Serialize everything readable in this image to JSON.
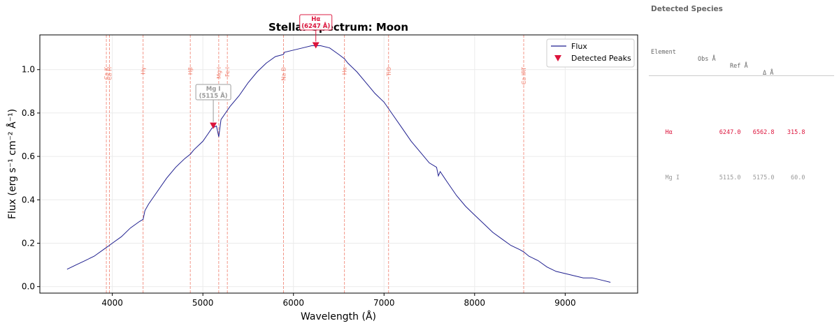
{
  "chart_data": {
    "type": "line",
    "title": "Stellar Spectrum: Moon",
    "xlabel": "Wavelength (Å)",
    "ylabel": "Flux (erg s⁻¹ cm⁻² Å⁻¹)",
    "xlim": [
      3200,
      9800
    ],
    "ylim": [
      -0.03,
      1.16
    ],
    "xticks": [
      4000,
      5000,
      6000,
      7000,
      8000,
      9000
    ],
    "yticks": [
      0.0,
      0.2,
      0.4,
      0.6,
      0.8,
      1.0
    ],
    "ytick_labels": [
      "0.0",
      "0.2",
      "0.4",
      "0.6",
      "0.8",
      "1.0"
    ],
    "grid": true,
    "legend_position": "top-right",
    "series": [
      {
        "name": "Flux",
        "color": "#1f1f8f",
        "x": [
          3500,
          3600,
          3700,
          3800,
          3900,
          3934,
          3968,
          4000,
          4100,
          4200,
          4300,
          4340,
          4360,
          4400,
          4500,
          4600,
          4700,
          4800,
          4861,
          4900,
          5000,
          5050,
          5100,
          5150,
          5175,
          5200,
          5250,
          5300,
          5400,
          5500,
          5600,
          5700,
          5800,
          5890,
          5900,
          6000,
          6100,
          6200,
          6250,
          6300,
          6400,
          6500,
          6563,
          6600,
          6700,
          6800,
          6900,
          7000,
          7100,
          7200,
          7300,
          7400,
          7500,
          7580,
          7600,
          7620,
          7700,
          7800,
          7900,
          8000,
          8100,
          8200,
          8300,
          8400,
          8500,
          8542,
          8600,
          8700,
          8800,
          8900,
          9000,
          9100,
          9200,
          9300,
          9400,
          9500
        ],
        "values": [
          0.08,
          0.1,
          0.12,
          0.14,
          0.17,
          0.18,
          0.19,
          0.2,
          0.23,
          0.27,
          0.3,
          0.31,
          0.35,
          0.38,
          0.44,
          0.5,
          0.55,
          0.59,
          0.61,
          0.63,
          0.67,
          0.7,
          0.73,
          0.74,
          0.69,
          0.77,
          0.8,
          0.83,
          0.88,
          0.94,
          0.99,
          1.03,
          1.06,
          1.07,
          1.08,
          1.09,
          1.1,
          1.11,
          1.11,
          1.11,
          1.1,
          1.07,
          1.05,
          1.03,
          0.99,
          0.94,
          0.89,
          0.85,
          0.79,
          0.73,
          0.67,
          0.62,
          0.57,
          0.55,
          0.51,
          0.53,
          0.48,
          0.42,
          0.37,
          0.33,
          0.29,
          0.25,
          0.22,
          0.19,
          0.17,
          0.16,
          0.14,
          0.12,
          0.09,
          0.07,
          0.06,
          0.05,
          0.04,
          0.04,
          0.03,
          0.02
        ]
      }
    ],
    "reference_lines": [
      {
        "label": "Ca K",
        "x": 3934
      },
      {
        "label": "Ca H",
        "x": 3968
      },
      {
        "label": "Hγ",
        "x": 4340
      },
      {
        "label": "Hβ",
        "x": 4861
      },
      {
        "label": "Mg I",
        "x": 5175
      },
      {
        "label": "Fe I",
        "x": 5270
      },
      {
        "label": "Na D",
        "x": 5890
      },
      {
        "label": "Hα",
        "x": 6563
      },
      {
        "label": "TiO",
        "x": 7050
      },
      {
        "label": "Ca IRT",
        "x": 8542
      }
    ],
    "peaks": {
      "name": "Detected Peaks",
      "color": "#dc143c",
      "points": [
        {
          "x": 6247,
          "y": 1.11,
          "annotation_line1": "Hα",
          "annotation_line2": "(6247 Å)",
          "color": "#dc143c"
        },
        {
          "x": 5115,
          "y": 0.74,
          "annotation_line1": "Mg I",
          "annotation_line2": "(5115 Å)",
          "color": "#999999"
        }
      ]
    },
    "legend": [
      "Flux",
      "Detected Peaks"
    ]
  },
  "panel": {
    "title": "Detected Species",
    "headers": {
      "element": "Element",
      "obs": "Obs Å",
      "ref": "Ref Å",
      "delta": "Δ Å"
    },
    "rows": [
      {
        "element": "Hα",
        "obs": "6247.0",
        "ref": "6562.8",
        "delta": "315.8",
        "color": "#dc143c"
      },
      {
        "element": "Mg I",
        "obs": "5115.0",
        "ref": "5175.0",
        "delta": "60.0",
        "color": "#999999"
      }
    ]
  }
}
